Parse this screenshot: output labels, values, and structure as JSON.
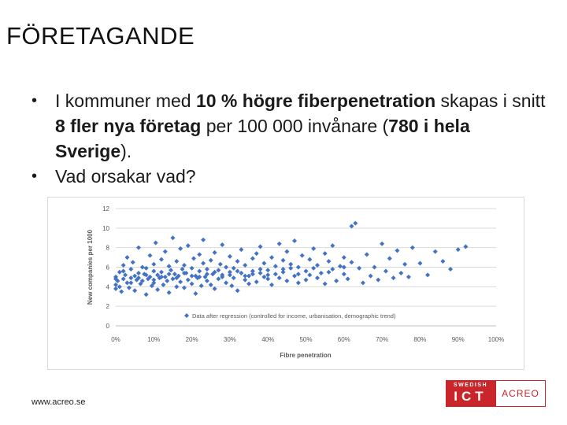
{
  "slide": {
    "title": "FÖRETAGANDE",
    "bullets": [
      {
        "parts": [
          {
            "text": "I kommuner med ",
            "bold": false
          },
          {
            "text": "10 % högre fiberpenetration",
            "bold": true
          },
          {
            "text": " skapas i snitt ",
            "bold": false
          },
          {
            "text": "8 fler nya företag",
            "bold": true
          },
          {
            "text": " per 100 000 invånare (",
            "bold": false
          },
          {
            "text": "780 i hela Sverige",
            "bold": true
          },
          {
            "text": ").",
            "bold": false
          }
        ]
      },
      {
        "parts": [
          {
            "text": "Vad orsakar vad?",
            "bold": false
          }
        ]
      }
    ],
    "footer_url": "www.acreo.se",
    "logo": {
      "top": "SWEDISH",
      "mark": "ICT",
      "name": "ACREO",
      "color": "#c9252b"
    }
  },
  "chart_data": {
    "type": "scatter",
    "xlabel": "Fibre penetration",
    "ylabel": "New companies per 1000",
    "xlim": [
      0,
      1
    ],
    "ylim": [
      0,
      12
    ],
    "xticks": [
      "0%",
      "10%",
      "20%",
      "30%",
      "40%",
      "50%",
      "60%",
      "70%",
      "80%",
      "90%",
      "100%"
    ],
    "yticks": [
      "0",
      "2",
      "4",
      "6",
      "8",
      "10",
      "12"
    ],
    "grid": "horizontal",
    "legend": "inside-bottom",
    "series": [
      {
        "name": "Data after regression (controlled for income, urbanisation, demographic trend)",
        "color": "#4472c4",
        "points": [
          [
            0.0,
            4.2
          ],
          [
            0.0,
            5.0
          ],
          [
            0.0,
            3.8
          ],
          [
            0.005,
            4.6
          ],
          [
            0.01,
            5.5
          ],
          [
            0.01,
            4.0
          ],
          [
            0.015,
            3.5
          ],
          [
            0.02,
            6.2
          ],
          [
            0.02,
            4.8
          ],
          [
            0.025,
            5.2
          ],
          [
            0.03,
            4.4
          ],
          [
            0.03,
            7.0
          ],
          [
            0.035,
            3.9
          ],
          [
            0.04,
            5.8
          ],
          [
            0.04,
            4.9
          ],
          [
            0.045,
            6.5
          ],
          [
            0.05,
            5.1
          ],
          [
            0.05,
            3.6
          ],
          [
            0.055,
            4.7
          ],
          [
            0.06,
            8.0
          ],
          [
            0.06,
            5.4
          ],
          [
            0.065,
            4.3
          ],
          [
            0.07,
            6.0
          ],
          [
            0.07,
            4.6
          ],
          [
            0.075,
            5.3
          ],
          [
            0.08,
            3.2
          ],
          [
            0.08,
            5.9
          ],
          [
            0.085,
            4.8
          ],
          [
            0.09,
            7.2
          ],
          [
            0.09,
            5.0
          ],
          [
            0.095,
            4.1
          ],
          [
            0.1,
            6.3
          ],
          [
            0.1,
            5.6
          ],
          [
            0.1,
            4.4
          ],
          [
            0.105,
            8.5
          ],
          [
            0.11,
            5.2
          ],
          [
            0.11,
            3.7
          ],
          [
            0.115,
            4.9
          ],
          [
            0.12,
            6.8
          ],
          [
            0.12,
            5.5
          ],
          [
            0.125,
            4.2
          ],
          [
            0.13,
            7.6
          ],
          [
            0.13,
            5.0
          ],
          [
            0.135,
            4.6
          ],
          [
            0.14,
            6.1
          ],
          [
            0.14,
            3.4
          ],
          [
            0.145,
            5.7
          ],
          [
            0.15,
            4.8
          ],
          [
            0.15,
            9.0
          ],
          [
            0.155,
            5.3
          ],
          [
            0.16,
            6.6
          ],
          [
            0.16,
            4.0
          ],
          [
            0.165,
            5.1
          ],
          [
            0.17,
            7.9
          ],
          [
            0.17,
            4.5
          ],
          [
            0.175,
            5.8
          ],
          [
            0.18,
            6.2
          ],
          [
            0.18,
            3.9
          ],
          [
            0.185,
            5.4
          ],
          [
            0.19,
            8.2
          ],
          [
            0.19,
            4.7
          ],
          [
            0.2,
            5.9
          ],
          [
            0.2,
            4.3
          ],
          [
            0.205,
            6.9
          ],
          [
            0.21,
            5.1
          ],
          [
            0.21,
            3.3
          ],
          [
            0.215,
            4.9
          ],
          [
            0.22,
            7.3
          ],
          [
            0.22,
            5.6
          ],
          [
            0.225,
            4.1
          ],
          [
            0.23,
            6.4
          ],
          [
            0.23,
            8.8
          ],
          [
            0.235,
            5.0
          ],
          [
            0.24,
            4.6
          ],
          [
            0.24,
            5.8
          ],
          [
            0.25,
            6.7
          ],
          [
            0.25,
            4.2
          ],
          [
            0.255,
            5.3
          ],
          [
            0.26,
            7.5
          ],
          [
            0.26,
            3.8
          ],
          [
            0.27,
            5.7
          ],
          [
            0.27,
            4.8
          ],
          [
            0.275,
            6.3
          ],
          [
            0.28,
            5.2
          ],
          [
            0.28,
            8.3
          ],
          [
            0.29,
            4.4
          ],
          [
            0.29,
            6.0
          ],
          [
            0.3,
            5.5
          ],
          [
            0.3,
            7.1
          ],
          [
            0.305,
            4.1
          ],
          [
            0.31,
            5.9
          ],
          [
            0.31,
            4.9
          ],
          [
            0.32,
            6.6
          ],
          [
            0.32,
            3.6
          ],
          [
            0.33,
            5.4
          ],
          [
            0.33,
            7.8
          ],
          [
            0.34,
            4.7
          ],
          [
            0.34,
            6.2
          ],
          [
            0.35,
            5.1
          ],
          [
            0.35,
            4.3
          ],
          [
            0.36,
            6.9
          ],
          [
            0.36,
            5.6
          ],
          [
            0.37,
            7.4
          ],
          [
            0.37,
            4.5
          ],
          [
            0.38,
            5.8
          ],
          [
            0.38,
            8.1
          ],
          [
            0.39,
            5.0
          ],
          [
            0.39,
            6.4
          ],
          [
            0.4,
            4.8
          ],
          [
            0.4,
            5.7
          ],
          [
            0.41,
            7.0
          ],
          [
            0.41,
            4.2
          ],
          [
            0.42,
            6.1
          ],
          [
            0.42,
            5.3
          ],
          [
            0.43,
            8.4
          ],
          [
            0.43,
            4.9
          ],
          [
            0.44,
            6.7
          ],
          [
            0.44,
            5.5
          ],
          [
            0.45,
            7.6
          ],
          [
            0.45,
            4.6
          ],
          [
            0.46,
            5.9
          ],
          [
            0.46,
            6.3
          ],
          [
            0.47,
            5.1
          ],
          [
            0.47,
            8.7
          ],
          [
            0.48,
            4.4
          ],
          [
            0.48,
            6.0
          ],
          [
            0.49,
            7.2
          ],
          [
            0.5,
            5.6
          ],
          [
            0.5,
            4.7
          ],
          [
            0.51,
            6.8
          ],
          [
            0.51,
            5.2
          ],
          [
            0.52,
            7.9
          ],
          [
            0.53,
            4.9
          ],
          [
            0.53,
            6.2
          ],
          [
            0.54,
            5.4
          ],
          [
            0.55,
            7.4
          ],
          [
            0.55,
            4.3
          ],
          [
            0.56,
            6.6
          ],
          [
            0.57,
            5.8
          ],
          [
            0.57,
            8.2
          ],
          [
            0.58,
            4.6
          ],
          [
            0.59,
            6.1
          ],
          [
            0.6,
            5.3
          ],
          [
            0.6,
            7.0
          ],
          [
            0.61,
            4.8
          ],
          [
            0.62,
            6.5
          ],
          [
            0.62,
            10.2
          ],
          [
            0.63,
            10.5
          ],
          [
            0.64,
            5.9
          ],
          [
            0.65,
            4.4
          ],
          [
            0.66,
            7.3
          ],
          [
            0.67,
            5.1
          ],
          [
            0.68,
            6.0
          ],
          [
            0.69,
            4.7
          ],
          [
            0.7,
            8.4
          ],
          [
            0.71,
            5.6
          ],
          [
            0.72,
            6.9
          ],
          [
            0.73,
            4.9
          ],
          [
            0.74,
            7.7
          ],
          [
            0.75,
            5.4
          ],
          [
            0.76,
            6.3
          ],
          [
            0.77,
            5.0
          ],
          [
            0.78,
            8.0
          ],
          [
            0.8,
            6.4
          ],
          [
            0.82,
            5.2
          ],
          [
            0.84,
            7.6
          ],
          [
            0.86,
            6.6
          ],
          [
            0.88,
            5.8
          ],
          [
            0.9,
            7.8
          ],
          [
            0.92,
            8.1
          ],
          [
            0.0,
            4.8
          ],
          [
            0.02,
            5.6
          ],
          [
            0.04,
            4.4
          ],
          [
            0.06,
            4.9
          ],
          [
            0.08,
            5.2
          ],
          [
            0.1,
            4.7
          ],
          [
            0.12,
            5.0
          ],
          [
            0.14,
            5.3
          ],
          [
            0.16,
            4.9
          ],
          [
            0.18,
            5.4
          ],
          [
            0.2,
            5.1
          ],
          [
            0.22,
            5.0
          ],
          [
            0.24,
            5.3
          ],
          [
            0.26,
            5.5
          ],
          [
            0.28,
            5.0
          ],
          [
            0.3,
            5.2
          ],
          [
            0.32,
            5.6
          ],
          [
            0.34,
            5.1
          ],
          [
            0.36,
            5.3
          ],
          [
            0.38,
            5.4
          ],
          [
            0.4,
            5.2
          ],
          [
            0.44,
            5.8
          ],
          [
            0.48,
            5.3
          ],
          [
            0.52,
            5.9
          ],
          [
            0.56,
            5.5
          ],
          [
            0.6,
            6.0
          ]
        ]
      }
    ]
  }
}
